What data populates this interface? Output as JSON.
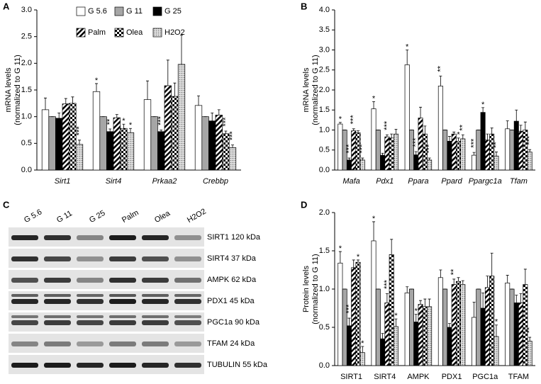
{
  "chart_data": [
    {
      "type": "bar",
      "panel": "A",
      "ylabel": [
        "mRNA levels",
        "(normalized to G 11)"
      ],
      "italic": true,
      "legend": true,
      "categories": [
        "Sirt1",
        "Sirt4",
        "Prkaa2",
        "Crebbp"
      ],
      "ylim": [
        0,
        3
      ],
      "yticks": [
        {
          "value": 0,
          "label": "0.0"
        },
        {
          "value": 0.5,
          "label": "0.5"
        },
        {
          "value": 1,
          "label": "1.0"
        },
        {
          "value": 1.5,
          "label": "1.5"
        },
        {
          "value": 2,
          "label": "2.0"
        },
        {
          "value": 2.5,
          "label": "2.5"
        },
        {
          "value": 3,
          "label": "3.0"
        }
      ],
      "series": [
        {
          "name": "G 5.6",
          "color": "#ffffff",
          "pattern": "none",
          "values": [
            1.13,
            1.47,
            1.32,
            1.21
          ],
          "errors": [
            0.22,
            0.15,
            0.35,
            0.18
          ],
          "stars": [
            null,
            "*",
            null,
            null
          ]
        },
        {
          "name": "G 11",
          "color": "#a6a6a6",
          "pattern": "none",
          "values": [
            1,
            1,
            1,
            1
          ],
          "errors": [
            0,
            0,
            0,
            0
          ],
          "stars": [
            null,
            null,
            null,
            null
          ]
        },
        {
          "name": "G 25",
          "color": "#000000",
          "pattern": "none",
          "values": [
            0.97,
            0.72,
            0.72,
            0.92
          ],
          "errors": [
            0.1,
            0.05,
            0.03,
            0.15
          ],
          "stars": [
            null,
            "**",
            "***",
            null
          ]
        },
        {
          "name": "Palm",
          "color": "#000000",
          "pattern": "diagonal",
          "values": [
            1.24,
            0.98,
            1.58,
            1.03
          ],
          "errors": [
            0.1,
            0.06,
            0.48,
            0.1
          ],
          "stars": [
            null,
            null,
            null,
            null
          ]
        },
        {
          "name": "Olea",
          "color": "#000000",
          "pattern": "checker",
          "values": [
            1.25,
            0.78,
            1.38,
            0.68
          ],
          "errors": [
            0.12,
            0.08,
            0.25,
            0.05
          ],
          "stars": [
            null,
            "*",
            null,
            "***"
          ]
        },
        {
          "name": "H2O2",
          "color": "#bfbfbf",
          "pattern": "dots",
          "values": [
            0.48,
            0.7,
            1.98,
            0.42
          ],
          "errors": [
            0.08,
            0.08,
            0.55,
            0.05
          ],
          "stars": [
            "***",
            "*",
            null,
            "***"
          ]
        }
      ]
    },
    {
      "type": "bar",
      "panel": "B",
      "ylabel": [
        "mRNA levels",
        "(normalized to G 11)"
      ],
      "italic": true,
      "legend": false,
      "categories": [
        "Mafa",
        "Pdx1",
        "Ppara",
        "Ppard",
        "Ppargc1a",
        "Tfam"
      ],
      "ylim": [
        0,
        4
      ],
      "yticks": [
        {
          "value": 0,
          "label": "0.0"
        },
        {
          "value": 0.5,
          "label": "0.5"
        },
        {
          "value": 1,
          "label": "1.0"
        },
        {
          "value": 1.5,
          "label": "1.5"
        },
        {
          "value": 2,
          "label": "2.0"
        },
        {
          "value": 2.5,
          "label": "2.5"
        },
        {
          "value": 3,
          "label": "3.0"
        },
        {
          "value": 3.5,
          "label": "3.5"
        },
        {
          "value": 4,
          "label": "4.0"
        }
      ],
      "series": [
        {
          "color": "#ffffff",
          "pattern": "none",
          "values": [
            1.15,
            1.53,
            2.63,
            2.1,
            0.37,
            1.03
          ],
          "errors": [
            0.04,
            0.18,
            0.37,
            0.25,
            0.07,
            0.2
          ],
          "stars": [
            "*",
            "*",
            "*",
            "**",
            "***",
            null
          ]
        },
        {
          "color": "#a6a6a6",
          "pattern": "none",
          "values": [
            1,
            1,
            1,
            1,
            1,
            1
          ],
          "errors": [
            0,
            0,
            0,
            0,
            0,
            0
          ],
          "stars": [
            null,
            null,
            null,
            null,
            null,
            null
          ]
        },
        {
          "color": "#000000",
          "pattern": "none",
          "values": [
            0.25,
            0.37,
            0.38,
            0.72,
            1.44,
            1.22
          ],
          "errors": [
            0.05,
            0.05,
            0.08,
            0.12,
            0.12,
            0.28
          ],
          "stars": [
            "***",
            null,
            "***",
            null,
            "*",
            null
          ]
        },
        {
          "color": "#000000",
          "pattern": "diagonal",
          "values": [
            0.98,
            0.83,
            1.3,
            0.9,
            0.75,
            0.97
          ],
          "errors": [
            0.05,
            0.05,
            0.27,
            0.05,
            0.15,
            0.15
          ],
          "stars": [
            "***",
            "***",
            null,
            null,
            null,
            null
          ]
        },
        {
          "color": "#000000",
          "pattern": "checker",
          "values": [
            0.93,
            0.8,
            0.9,
            0.72,
            0.9,
            1
          ],
          "errors": [
            0.05,
            0.1,
            0.2,
            0.08,
            0.15,
            0.2
          ],
          "stars": [
            null,
            null,
            null,
            "*",
            null,
            null
          ]
        },
        {
          "color": "#bfbfbf",
          "pattern": "dots",
          "values": [
            0.25,
            0.9,
            0.25,
            0.78,
            0.35,
            0.45
          ],
          "errors": [
            0.05,
            0.12,
            0.05,
            0.1,
            0.1,
            0.06
          ],
          "stars": [
            "***",
            null,
            "***",
            "**",
            "**",
            "***"
          ]
        }
      ]
    },
    {
      "type": "bar",
      "panel": "D",
      "ylabel": [
        "Protein levels",
        "(normalized to G 11)"
      ],
      "italic": false,
      "legend": false,
      "categories": [
        "SIRT1",
        "SIRT4",
        "AMPK",
        "PDX1",
        "PGC1a",
        "TFAM"
      ],
      "ylim": [
        0,
        2
      ],
      "yticks": [
        {
          "value": 0,
          "label": "0.0"
        },
        {
          "value": 0.5,
          "label": "0.5"
        },
        {
          "value": 1,
          "label": "1.0"
        },
        {
          "value": 1.5,
          "label": "1.5"
        },
        {
          "value": 2,
          "label": "2.0"
        }
      ],
      "series": [
        {
          "color": "#ffffff",
          "pattern": "none",
          "values": [
            1.34,
            1.63,
            0.95,
            1.15,
            0.63,
            1.08
          ],
          "errors": [
            0.15,
            0.25,
            0.08,
            0.1,
            0.2,
            0.1
          ],
          "stars": [
            "*",
            "*",
            null,
            null,
            null,
            null
          ]
        },
        {
          "color": "#a6a6a6",
          "pattern": "none",
          "values": [
            1,
            1,
            1,
            1,
            1,
            1
          ],
          "errors": [
            0,
            0,
            0,
            0,
            0,
            0
          ],
          "stars": [
            null,
            null,
            null,
            null,
            null,
            null
          ]
        },
        {
          "color": "#000000",
          "pattern": "none",
          "values": [
            0.52,
            0.35,
            0.57,
            0.5,
            0.75,
            0.82
          ],
          "errors": [
            0.1,
            0.07,
            0.1,
            0.05,
            0.2,
            0.1
          ],
          "stars": [
            "***",
            null,
            "*",
            null,
            null,
            null
          ]
        },
        {
          "color": "#000000",
          "pattern": "diagonal",
          "values": [
            1.28,
            0.82,
            0.8,
            1.06,
            1.02,
            0.82
          ],
          "errors": [
            0.1,
            0.12,
            0.05,
            0.07,
            0.15,
            0.12
          ],
          "stars": [
            null,
            "***",
            null,
            "**",
            null,
            null
          ]
        },
        {
          "color": "#000000",
          "pattern": "checker",
          "values": [
            1.35,
            1.45,
            0.77,
            1.1,
            1.17,
            1.06
          ],
          "errors": [
            0.03,
            0.2,
            0.1,
            0.05,
            0.3,
            0.2
          ],
          "stars": [
            "*",
            null,
            null,
            null,
            null,
            null
          ]
        },
        {
          "color": "#bfbfbf",
          "pattern": "dots",
          "values": [
            0.17,
            0.51,
            0.77,
            1.06,
            0.38,
            0.32
          ],
          "errors": [
            0.08,
            0.1,
            0.1,
            0.05,
            0.15,
            0.05
          ],
          "stars": [
            "*",
            "*",
            null,
            null,
            "*",
            "**"
          ]
        }
      ]
    }
  ],
  "blot": {
    "panel": "C",
    "lanes": [
      "G 5.6",
      "G 11",
      "G 25",
      "Palm",
      "Olea",
      "H2O2"
    ],
    "rows": [
      "SIRT1 120 kDa",
      "SIRT4 37 kDa",
      "AMPK 62 kDa",
      "PDX1 45 kDa",
      "PGC1a 90 kDa",
      "TFAM 24 kDa",
      "TUBULIN 55 kDa"
    ]
  }
}
